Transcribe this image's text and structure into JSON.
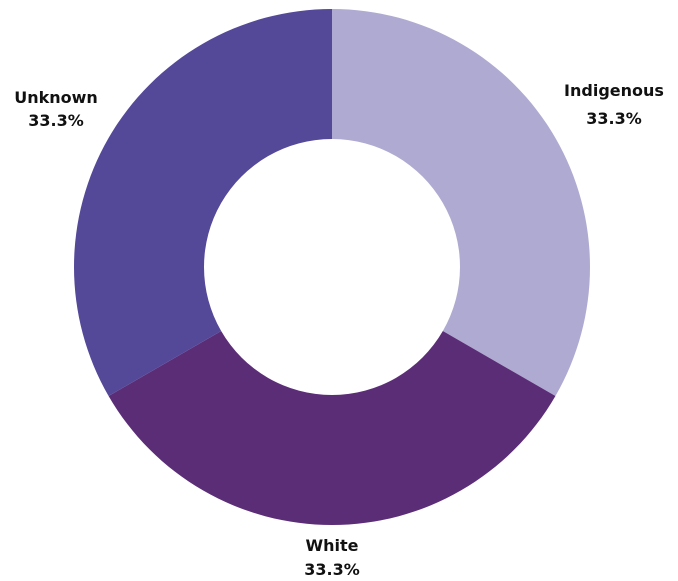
{
  "chart_data": {
    "type": "pie",
    "variant": "donut",
    "title": "",
    "legend": "none",
    "slices": [
      {
        "label": "Indigenous",
        "value": 33.3,
        "display": "33.3%",
        "color": "#afaad1"
      },
      {
        "label": "White",
        "value": 33.3,
        "display": "33.3%",
        "color": "#5b2d77"
      },
      {
        "label": "Unknown",
        "value": 33.3,
        "display": "33.3%",
        "color": "#544898"
      }
    ]
  }
}
